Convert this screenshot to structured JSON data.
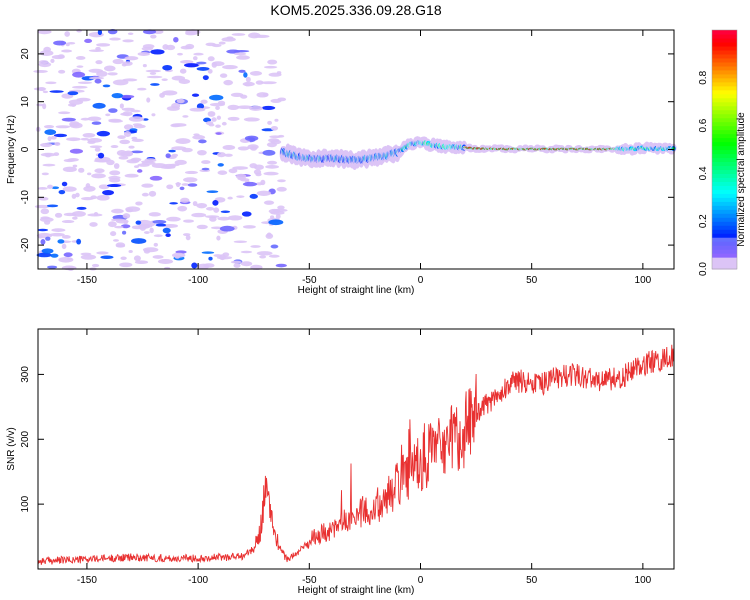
{
  "page_title": "KOM5.2025.336.09.28.G18",
  "chart_data": [
    {
      "type": "heatmap",
      "title": "KOM5.2025.336.09.28.G18",
      "xlabel": "Height of straight line (km)",
      "ylabel": "Frequency (Hz)",
      "xlim": [
        -172,
        114
      ],
      "ylim": [
        -25,
        25
      ],
      "xticks": [
        -150,
        -100,
        -50,
        0,
        50,
        100
      ],
      "yticks": [
        -20,
        -10,
        0,
        10,
        20
      ],
      "noise_region_x": [
        -172,
        -62
      ],
      "signal_ridge": {
        "x": [
          -62,
          -55,
          -48,
          -40,
          -35,
          -30,
          -25,
          -20,
          -15,
          -10,
          -5,
          0,
          5,
          10,
          15,
          20,
          25,
          40,
          60,
          80,
          90,
          95,
          100,
          105,
          114
        ],
        "frequency": [
          -0.5,
          -1.5,
          -2,
          -1.8,
          -2,
          -2.2,
          -2,
          -1.6,
          -1.2,
          -0.5,
          1,
          1.5,
          1,
          0.6,
          0.5,
          0.4,
          0.2,
          0.1,
          0.1,
          0.1,
          0.1,
          0.1,
          0.3,
          0.2,
          0.2
        ]
      },
      "colorbar": {
        "label": "Normalized spectral amplitude",
        "range": [
          0,
          1
        ],
        "ticks": [
          0.0,
          0.2,
          0.4,
          0.6,
          0.8
        ]
      }
    },
    {
      "type": "line",
      "xlabel": "Height of straight line (km)",
      "ylabel": "SNR (v/v)",
      "xlim": [
        -172,
        114
      ],
      "ylim": [
        0,
        370
      ],
      "xticks": [
        -150,
        -100,
        -50,
        0,
        50,
        100
      ],
      "yticks": [
        100,
        200,
        300
      ],
      "color": "#e83030",
      "series": [
        {
          "name": "SNR",
          "x": [
            -172,
            -150,
            -130,
            -110,
            -90,
            -80,
            -75,
            -72,
            -70,
            -68,
            -66,
            -63,
            -60,
            -55,
            -50,
            -45,
            -40,
            -35,
            -30,
            -25,
            -20,
            -15,
            -10,
            -5,
            0,
            5,
            10,
            15,
            20,
            25,
            30,
            35,
            40,
            45,
            50,
            55,
            60,
            70,
            80,
            90,
            95,
            100,
            105,
            110,
            114
          ],
          "y": [
            12,
            15,
            18,
            16,
            18,
            20,
            30,
            60,
            120,
            100,
            60,
            30,
            15,
            25,
            45,
            55,
            60,
            70,
            80,
            90,
            95,
            110,
            130,
            150,
            165,
            180,
            190,
            200,
            215,
            235,
            255,
            270,
            285,
            290,
            288,
            285,
            295,
            300,
            290,
            295,
            305,
            315,
            320,
            325,
            330
          ]
        }
      ]
    }
  ]
}
